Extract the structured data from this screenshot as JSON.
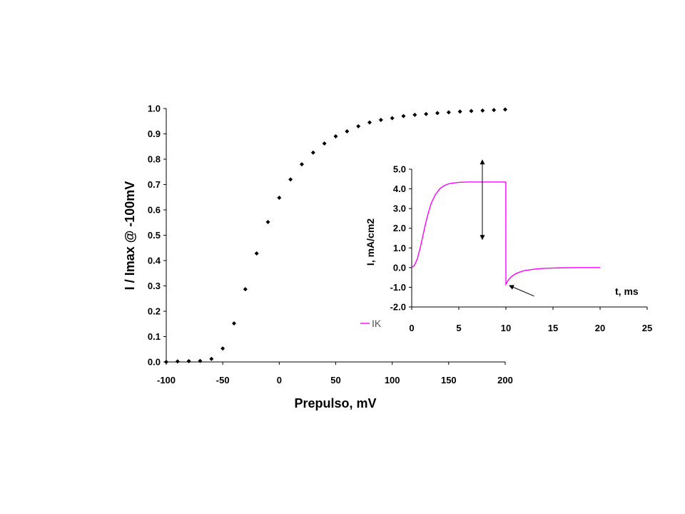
{
  "chart_data": [
    {
      "type": "scatter",
      "xlabel": "Prepulso, mV",
      "ylabel": "I / Imax @ -100mV",
      "xlim": [
        -100,
        200
      ],
      "ylim": [
        0,
        1.0
      ],
      "xticks": [
        "-100",
        "-50",
        "0",
        "50",
        "100",
        "150",
        "200"
      ],
      "yticks": [
        "0.0",
        "0.1",
        "0.2",
        "0.3",
        "0.4",
        "0.5",
        "0.6",
        "0.7",
        "0.8",
        "0.9",
        "1.0"
      ],
      "grid": false,
      "marker_color": "#000000",
      "x": [
        -100,
        -90,
        -80,
        -70,
        -60,
        -50,
        -40,
        -30,
        -20,
        -10,
        0,
        10,
        20,
        30,
        40,
        50,
        60,
        70,
        80,
        90,
        100,
        110,
        120,
        130,
        140,
        150,
        160,
        170,
        180,
        190,
        200
      ],
      "y": [
        0.0,
        0.002,
        0.003,
        0.004,
        0.012,
        0.053,
        0.152,
        0.287,
        0.428,
        0.552,
        0.648,
        0.72,
        0.78,
        0.826,
        0.862,
        0.89,
        0.91,
        0.93,
        0.945,
        0.955,
        0.962,
        0.97,
        0.975,
        0.978,
        0.982,
        0.985,
        0.988,
        0.99,
        0.992,
        0.994,
        0.996
      ]
    },
    {
      "type": "line",
      "xlabel": "t, ms",
      "ylabel": "I, mA/cm2",
      "xlim": [
        0,
        25
      ],
      "ylim": [
        -2.0,
        5.0
      ],
      "xticks": [
        "0",
        "5",
        "10",
        "15",
        "20",
        "25"
      ],
      "yticks": [
        "-2.0",
        "-1.0",
        "0.0",
        "1.0",
        "2.0",
        "3.0",
        "4.0",
        "5.0"
      ],
      "grid": false,
      "legend_position": "bottom-left",
      "series": [
        {
          "name": "IK",
          "color": "#ff00ff",
          "x": [
            0,
            0.3,
            0.6,
            0.9,
            1.2,
            1.5,
            1.8,
            2.1,
            2.5,
            3.0,
            3.5,
            4.0,
            5.0,
            6.0,
            7.0,
            8.0,
            9.0,
            9.99,
            10.0,
            10.3,
            10.6,
            11.0,
            11.5,
            12.0,
            13.0,
            14.0,
            15.0,
            16.0,
            18.0,
            20.0
          ],
          "y": [
            0.0,
            0.12,
            0.45,
            1.0,
            1.65,
            2.3,
            2.85,
            3.3,
            3.7,
            4.02,
            4.18,
            4.27,
            4.33,
            4.35,
            4.35,
            4.35,
            4.35,
            4.35,
            -0.85,
            -0.6,
            -0.45,
            -0.32,
            -0.22,
            -0.15,
            -0.08,
            -0.04,
            -0.02,
            -0.01,
            0.0,
            0.0
          ]
        }
      ],
      "annotations": [
        {
          "type": "double-arrow",
          "x": 7.5,
          "y_from": 1.4,
          "y_to": 5.5
        },
        {
          "type": "arrow",
          "from": [
            13.0,
            -1.45
          ],
          "to": [
            10.3,
            -0.9
          ]
        }
      ]
    }
  ]
}
